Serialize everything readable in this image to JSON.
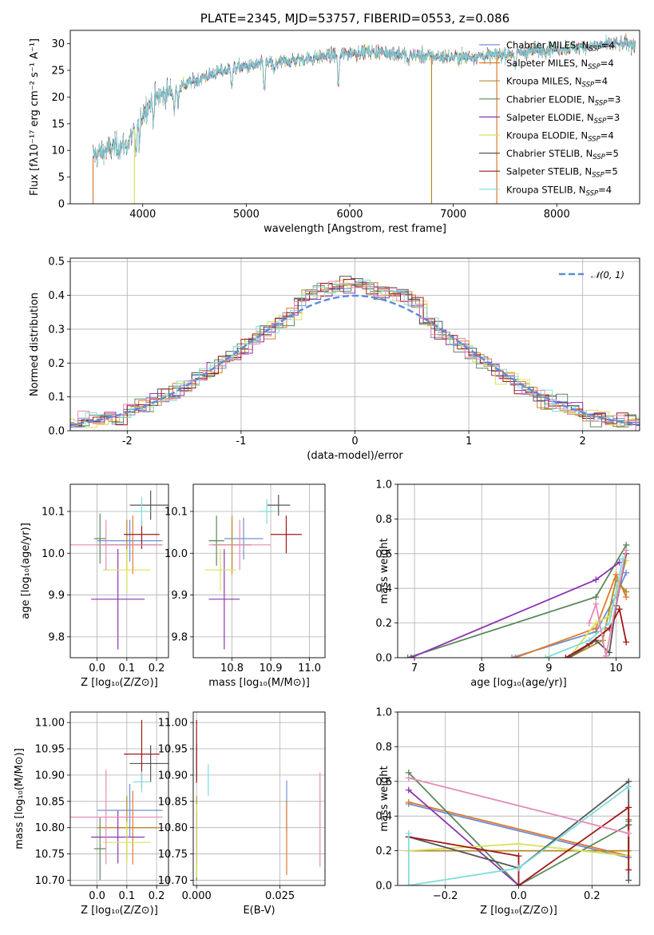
{
  "colors": {
    "Chabrier MILES": "#6f8fd8",
    "Salpeter MILES": "#e07a2c",
    "Kroupa MILES": "#b38a2a",
    "Chabrier ELODIE": "#5a8a5a",
    "Salpeter ELODIE": "#8e34b0",
    "Kroupa ELODIE": "#d8e05a",
    "Chabrier STELIB": "#555555",
    "Salpeter STELIB": "#a01818",
    "Kroupa STELIB": "#7fdcdc",
    "pink": "#e58bb8",
    "normal": "#5b8bd8"
  },
  "chart_data": [
    {
      "id": "spectrum",
      "type": "line",
      "title": "PLATE=2345, MJD=53757, FIBERID=0553, z=0.086",
      "xlabel": "wavelength [Angstrom, rest frame]",
      "ylabel": "Flux [fλ10⁻¹⁷ erg cm⁻² s⁻¹ A⁻¹]",
      "xlim": [
        3300,
        8800
      ],
      "ylim": [
        0,
        32.5
      ],
      "xticks": [
        4000,
        5000,
        6000,
        7000,
        8000
      ],
      "yticks": [
        0,
        5,
        10,
        15,
        20,
        25,
        30
      ],
      "grid": false,
      "legend_position": "top-right",
      "continuum_knots": {
        "x": [
          3520,
          3700,
          3850,
          3920,
          4000,
          4100,
          4300,
          4500,
          4700,
          4900,
          5100,
          5300,
          5500,
          5700,
          5900,
          6100,
          6300,
          6500,
          6700,
          6900,
          7100,
          7300,
          7500,
          7700,
          7900,
          8100,
          8300,
          8500,
          8760
        ],
        "y": [
          9,
          10.5,
          11,
          14,
          17,
          19.5,
          21.5,
          23,
          24.5,
          25.5,
          26,
          26.5,
          27,
          27.5,
          28,
          28.5,
          28.5,
          28,
          27.7,
          27.5,
          27.5,
          27.7,
          28,
          28.5,
          29,
          29.2,
          29.5,
          29.8,
          30
        ]
      },
      "series": [
        {
          "name": "Chabrier MILES, N_SSP=4",
          "legend": "Chabrier MILES, N",
          "sub": "SSP",
          "suffix": "=4",
          "color": "Chabrier MILES"
        },
        {
          "name": "Salpeter MILES, N_SSP=4",
          "legend": "Salpeter MILES, N",
          "sub": "SSP",
          "suffix": "=4",
          "color": "Salpeter MILES"
        },
        {
          "name": "Kroupa MILES, N_SSP=4",
          "legend": "Kroupa MILES, N",
          "sub": "SSP",
          "suffix": "=4",
          "color": "Kroupa MILES"
        },
        {
          "name": "Chabrier ELODIE, N_SSP=3",
          "legend": "Chabrier ELODIE, N",
          "sub": "SSP",
          "suffix": "=3",
          "color": "Chabrier ELODIE"
        },
        {
          "name": "Salpeter ELODIE, N_SSP=3",
          "legend": "Salpeter ELODIE, N",
          "sub": "SSP",
          "suffix": "=3",
          "color": "Salpeter ELODIE"
        },
        {
          "name": "Kroupa ELODIE, N_SSP=4",
          "legend": "Kroupa ELODIE, N",
          "sub": "SSP",
          "suffix": "=4",
          "color": "Kroupa ELODIE"
        },
        {
          "name": "Chabrier STELIB, N_SSP=5",
          "legend": "Chabrier STELIB, N",
          "sub": "SSP",
          "suffix": "=5",
          "color": "Chabrier STELIB"
        },
        {
          "name": "Salpeter STELIB, N_SSP=5",
          "legend": "Salpeter STELIB, N",
          "sub": "SSP",
          "suffix": "=5",
          "color": "Salpeter STELIB"
        },
        {
          "name": "Kroupa STELIB, N_SSP=4",
          "legend": "Kroupa STELIB, N",
          "sub": "SSP",
          "suffix": "=4",
          "color": "Kroupa STELIB"
        }
      ],
      "drops": [
        {
          "x": 3520,
          "color": "Salpeter MILES"
        },
        {
          "x": 3920,
          "color": "Kroupa ELODIE"
        },
        {
          "x": 6790,
          "color": "Kroupa MILES"
        },
        {
          "x": 7420,
          "color": "Salpeter MILES"
        }
      ]
    },
    {
      "id": "residuals",
      "type": "histogram",
      "xlabel": "(data-model)/error",
      "ylabel": "Normed distribution",
      "xlim": [
        -2.5,
        2.5
      ],
      "ylim": [
        0,
        0.51
      ],
      "xticks": [
        -2,
        -1,
        0,
        1,
        2
      ],
      "yticks": [
        0.0,
        0.1,
        0.2,
        0.3,
        0.4,
        0.5
      ],
      "grid": true,
      "legend_position": "top-right",
      "normal_label": "𝒩(0, 1)",
      "bin_width": 0.1
    },
    {
      "id": "age_vs_Z",
      "type": "errorbar",
      "xlabel": "Z [log₁₀(Z/Z⊙)]",
      "ylabel": "age  [log₁₀(age/yr)]",
      "xlim": [
        -0.09,
        0.24
      ],
      "ylim": [
        9.75,
        10.165
      ],
      "xticks": [
        0.0,
        0.1,
        0.2
      ],
      "yticks": [
        9.8,
        9.9,
        10.0,
        10.1
      ],
      "grid": true,
      "points": [
        {
          "x": 0.11,
          "xerr": 0.11,
          "y": 10.03,
          "yerr": 0.05,
          "color": "Chabrier MILES"
        },
        {
          "x": 0.12,
          "xerr": 0.1,
          "y": 10.02,
          "yerr": 0.07,
          "color": "Salpeter MILES"
        },
        {
          "x": 0.1,
          "xerr": 0.1,
          "y": 10.02,
          "yerr": 0.06,
          "color": "Kroupa MILES"
        },
        {
          "x": 0.01,
          "xerr": 0.02,
          "y": 10.035,
          "yerr": 0.06,
          "color": "Chabrier ELODIE"
        },
        {
          "x": 0.07,
          "xerr": 0.09,
          "y": 9.89,
          "yerr": 0.12,
          "color": "Salpeter ELODIE"
        },
        {
          "x": 0.1,
          "xerr": 0.08,
          "y": 9.96,
          "yerr": 0.05,
          "color": "Kroupa ELODIE"
        },
        {
          "x": 0.18,
          "xerr": 0.07,
          "y": 10.115,
          "yerr": 0.035,
          "color": "Chabrier STELIB"
        },
        {
          "x": 0.15,
          "xerr": 0.06,
          "y": 10.045,
          "yerr": 0.035,
          "color": "Salpeter STELIB"
        },
        {
          "x": 0.15,
          "xerr": 0.03,
          "y": 10.1,
          "yerr": 0.035,
          "color": "Kroupa STELIB"
        },
        {
          "x": 0.03,
          "xerr": 0.19,
          "y": 10.02,
          "yerr": 0.06,
          "color": "pink"
        }
      ]
    },
    {
      "id": "age_vs_mass",
      "type": "errorbar",
      "xlabel": "mass [log₁₀(M/M⊙)]",
      "xlim": [
        10.7,
        11.04
      ],
      "ylim": [
        9.75,
        10.165
      ],
      "xticks": [
        10.8,
        10.9,
        11.0
      ],
      "yticks": [
        9.8,
        9.9,
        10.0,
        10.1
      ],
      "grid": true,
      "points": [
        {
          "x": 10.83,
          "xerr": 0.05,
          "y": 10.035,
          "yerr": 0.05,
          "color": "Chabrier MILES"
        },
        {
          "x": 10.8,
          "xerr": 0.05,
          "y": 10.02,
          "yerr": 0.07,
          "color": "Salpeter MILES"
        },
        {
          "x": 10.8,
          "xerr": 0.05,
          "y": 10.02,
          "yerr": 0.06,
          "color": "Kroupa MILES"
        },
        {
          "x": 10.76,
          "xerr": 0.02,
          "y": 10.03,
          "yerr": 0.06,
          "color": "Chabrier ELODIE"
        },
        {
          "x": 10.78,
          "xerr": 0.04,
          "y": 9.89,
          "yerr": 0.12,
          "color": "Salpeter ELODIE"
        },
        {
          "x": 10.77,
          "xerr": 0.04,
          "y": 9.96,
          "yerr": 0.05,
          "color": "Kroupa ELODIE"
        },
        {
          "x": 10.92,
          "xerr": 0.03,
          "y": 10.115,
          "yerr": 0.025,
          "color": "Chabrier STELIB"
        },
        {
          "x": 10.94,
          "xerr": 0.04,
          "y": 10.045,
          "yerr": 0.045,
          "color": "Salpeter STELIB"
        },
        {
          "x": 10.89,
          "xerr": 0.02,
          "y": 10.1,
          "yerr": 0.03,
          "color": "Kroupa STELIB"
        },
        {
          "x": 10.82,
          "xerr": 0.08,
          "y": 10.02,
          "yerr": 0.06,
          "color": "pink"
        }
      ]
    },
    {
      "id": "weight_vs_age",
      "type": "line",
      "xlabel": "age  [log₁₀(age/yr)]",
      "ylabel": "mass weight",
      "xlim": [
        6.75,
        10.35
      ],
      "ylim": [
        0,
        1.0
      ],
      "xticks": [
        7,
        8,
        9,
        10
      ],
      "yticks": [
        0.0,
        0.2,
        0.4,
        0.6,
        0.8,
        1.0
      ],
      "grid": true,
      "series": [
        {
          "color": "Chabrier MILES",
          "x": [
            8.45,
            9.7,
            10.0,
            10.15
          ],
          "y": [
            0.0,
            0.15,
            0.36,
            0.49
          ]
        },
        {
          "color": "Salpeter MILES",
          "x": [
            8.5,
            9.7,
            10.0,
            10.15
          ],
          "y": [
            0.0,
            0.17,
            0.48,
            0.35
          ]
        },
        {
          "color": "Kroupa MILES",
          "x": [
            9.3,
            9.8,
            10.0,
            10.15
          ],
          "y": [
            0.0,
            0.1,
            0.45,
            0.38
          ]
        },
        {
          "color": "Chabrier ELODIE",
          "x": [
            6.9,
            9.7,
            10.15
          ],
          "y": [
            0.0,
            0.35,
            0.65
          ]
        },
        {
          "color": "Salpeter ELODIE",
          "x": [
            6.95,
            9.7,
            10.05
          ],
          "y": [
            0.0,
            0.45,
            0.55
          ]
        },
        {
          "color": "Kroupa ELODIE",
          "x": [
            9.3,
            9.7,
            9.9,
            10.15
          ],
          "y": [
            0.0,
            0.2,
            0.24,
            0.56
          ]
        },
        {
          "color": "Chabrier STELIB",
          "x": [
            9.3,
            9.7,
            9.9,
            10.0,
            10.15
          ],
          "y": [
            0.0,
            0.1,
            0.03,
            0.3,
            0.6
          ]
        },
        {
          "color": "Salpeter STELIB",
          "x": [
            9.25,
            9.6,
            9.9,
            10.05,
            10.15
          ],
          "y": [
            0.0,
            0.08,
            0.17,
            0.28,
            0.09
          ]
        },
        {
          "color": "Kroupa STELIB",
          "x": [
            8.95,
            9.6,
            9.9,
            10.1
          ],
          "y": [
            0.0,
            0.1,
            0.2,
            0.57
          ]
        },
        {
          "color": "pink",
          "x": [
            9.6,
            9.7,
            9.85,
            10.15
          ],
          "y": [
            0.2,
            0.31,
            0.01,
            0.62
          ]
        }
      ]
    },
    {
      "id": "mass_vs_Z",
      "type": "errorbar",
      "xlabel": "Z [log₁₀(Z/Z⊙)]",
      "ylabel": "mass [log₁₀(M/M⊙)]",
      "xlim": [
        -0.09,
        0.24
      ],
      "ylim": [
        10.69,
        11.02
      ],
      "xticks": [
        0.0,
        0.1,
        0.2
      ],
      "yticks": [
        10.7,
        10.75,
        10.8,
        10.85,
        10.9,
        10.95,
        11.0
      ],
      "grid": true,
      "points": [
        {
          "x": 0.11,
          "xerr": 0.11,
          "y": 10.833,
          "yerr": 0.05,
          "color": "Chabrier MILES"
        },
        {
          "x": 0.12,
          "xerr": 0.1,
          "y": 10.8,
          "yerr": 0.07,
          "color": "Salpeter MILES"
        },
        {
          "x": 0.1,
          "xerr": 0.1,
          "y": 10.8,
          "yerr": 0.06,
          "color": "Kroupa MILES"
        },
        {
          "x": 0.01,
          "xerr": 0.02,
          "y": 10.76,
          "yerr": 0.06,
          "color": "Chabrier ELODIE"
        },
        {
          "x": 0.07,
          "xerr": 0.09,
          "y": 10.782,
          "yerr": 0.05,
          "color": "Salpeter ELODIE"
        },
        {
          "x": 0.1,
          "xerr": 0.08,
          "y": 10.772,
          "yerr": 0.04,
          "color": "Kroupa ELODIE"
        },
        {
          "x": 0.18,
          "xerr": 0.07,
          "y": 10.922,
          "yerr": 0.035,
          "color": "Chabrier STELIB"
        },
        {
          "x": 0.15,
          "xerr": 0.06,
          "y": 10.94,
          "yerr": 0.065,
          "color": "Salpeter STELIB"
        },
        {
          "x": 0.15,
          "xerr": 0.03,
          "y": 10.887,
          "yerr": 0.02,
          "color": "Kroupa STELIB"
        },
        {
          "x": 0.03,
          "xerr": 0.19,
          "y": 10.82,
          "yerr": 0.09,
          "color": "pink"
        }
      ]
    },
    {
      "id": "mass_vs_ebv",
      "type": "errorbar",
      "xlabel": "E(B-V)",
      "xlim": [
        -0.001,
        0.0385
      ],
      "ylim": [
        10.69,
        11.02
      ],
      "xticks": [
        0.0,
        0.025
      ],
      "xtick_labels": [
        "0.000",
        "0.025"
      ],
      "yticks": [
        10.7,
        10.75,
        10.8,
        10.85,
        10.9,
        10.95,
        11.0
      ],
      "grid": true,
      "points": [
        {
          "x": 0.027,
          "xerr": 0,
          "y": 10.84,
          "yerr": 0.05,
          "color": "Chabrier MILES"
        },
        {
          "x": 0.027,
          "xerr": 0,
          "y": 10.78,
          "yerr": 0.07,
          "color": "Salpeter MILES"
        },
        {
          "x": 0.0,
          "xerr": 0,
          "y": 10.8,
          "yerr": 0.06,
          "color": "Kroupa MILES"
        },
        {
          "x": 0.0,
          "xerr": 0,
          "y": 10.76,
          "yerr": 0.06,
          "color": "Chabrier ELODIE"
        },
        {
          "x": 0.0,
          "xerr": 0,
          "y": 10.782,
          "yerr": 0.05,
          "color": "Salpeter ELODIE"
        },
        {
          "x": 0.0,
          "xerr": 0,
          "y": 10.775,
          "yerr": 0.07,
          "color": "Kroupa ELODIE"
        },
        {
          "x": 0.0,
          "xerr": 0,
          "y": 10.925,
          "yerr": 0.035,
          "color": "Chabrier STELIB"
        },
        {
          "x": 0.0,
          "xerr": 0,
          "y": 10.945,
          "yerr": 0.06,
          "color": "Salpeter STELIB"
        },
        {
          "x": 0.0035,
          "xerr": 0,
          "y": 10.89,
          "yerr": 0.03,
          "color": "Kroupa STELIB"
        },
        {
          "x": 0.037,
          "xerr": 0,
          "y": 10.815,
          "yerr": 0.09,
          "color": "pink"
        }
      ]
    },
    {
      "id": "weight_vs_Z",
      "type": "line",
      "xlabel": "Z [log₁₀(Z/Z⊙)]",
      "ylabel": "mass weight",
      "xlim": [
        -0.33,
        0.33
      ],
      "ylim": [
        0,
        1.0
      ],
      "xticks": [
        -0.2,
        0.0,
        0.2
      ],
      "xtick_labels": [
        "−0.2",
        "0.0",
        "0.2"
      ],
      "yticks": [
        0.0,
        0.2,
        0.4,
        0.6,
        0.8,
        1.0
      ],
      "grid": true,
      "series": [
        {
          "color": "Chabrier MILES",
          "x": [
            -0.3,
            0.3,
            0.3
          ],
          "y": [
            0.47,
            0.16,
            0.37
          ]
        },
        {
          "color": "Salpeter MILES",
          "x": [
            -0.3,
            0.3,
            0.3
          ],
          "y": [
            0.48,
            0.17,
            0.35
          ]
        },
        {
          "color": "Kroupa MILES",
          "x": [
            -0.3,
            0.3,
            0.3
          ],
          "y": [
            0.2,
            0.2,
            0.38
          ]
        },
        {
          "color": "Chabrier ELODIE",
          "x": [
            -0.3,
            0.0,
            0.3
          ],
          "y": [
            0.65,
            0.0,
            0.35
          ]
        },
        {
          "color": "Salpeter ELODIE",
          "x": [
            -0.3,
            0.0
          ],
          "y": [
            0.55,
            0.0
          ]
        },
        {
          "color": "Kroupa ELODIE",
          "x": [
            -0.3,
            0.0,
            0.3
          ],
          "y": [
            0.2,
            0.24,
            0.17
          ]
        },
        {
          "color": "Chabrier STELIB",
          "x": [
            -0.3,
            0.0,
            0.3,
            0.3
          ],
          "y": [
            0.28,
            0.1,
            0.6,
            0.03
          ]
        },
        {
          "color": "Salpeter STELIB",
          "x": [
            -0.3,
            0.0,
            0.0,
            0.3,
            0.3
          ],
          "y": [
            0.28,
            0.17,
            0.0,
            0.45,
            0.09
          ]
        },
        {
          "color": "Kroupa STELIB",
          "x": [
            -0.3,
            -0.3,
            0.0,
            0.3
          ],
          "y": [
            0.3,
            0.0,
            0.1,
            0.57
          ]
        },
        {
          "color": "pink",
          "x": [
            -0.3,
            0.3
          ],
          "y": [
            0.62,
            0.3
          ]
        }
      ]
    }
  ]
}
